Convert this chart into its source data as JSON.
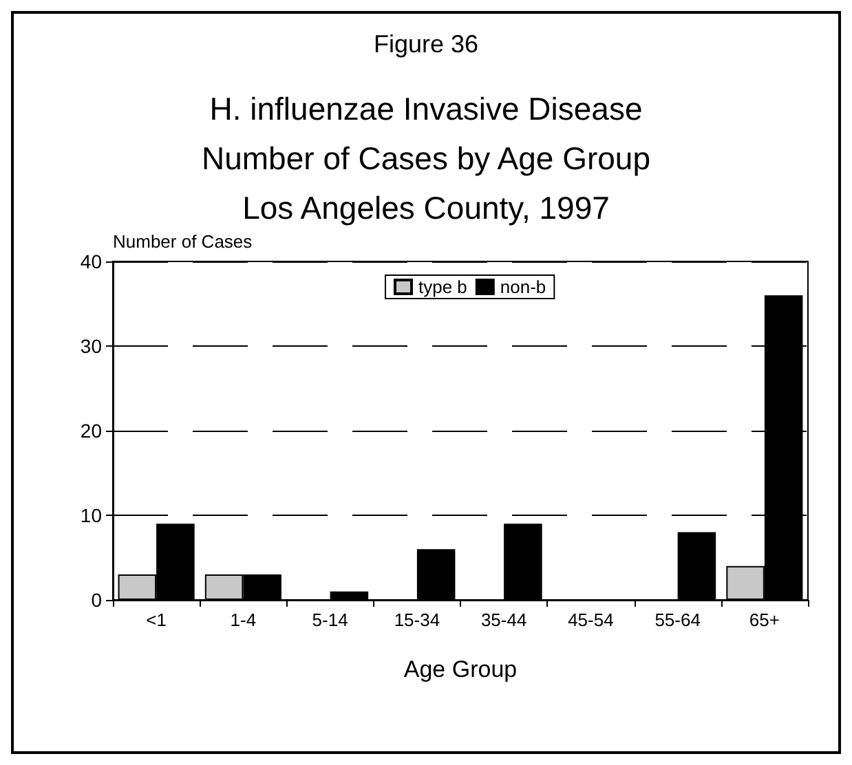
{
  "chart_data": {
    "type": "bar",
    "title": "Figure 36",
    "subtitle": "H. influenzae Invasive Disease\nNumber of Cases by Age Group\nLos Angeles County, 1997",
    "xlabel": "Age Group",
    "ylabel": "Number of Cases",
    "categories": [
      "<1",
      "1-4",
      "5-14",
      "15-34",
      "35-44",
      "45-54",
      "55-64",
      "65+"
    ],
    "series": [
      {
        "name": "type b",
        "color": "#c8c8c8",
        "values": [
          3,
          3,
          0,
          0,
          0,
          0,
          0,
          4
        ]
      },
      {
        "name": "non-b",
        "color": "#000000",
        "values": [
          9,
          3,
          1,
          6,
          9,
          0,
          8,
          36
        ]
      }
    ],
    "ylim": [
      0,
      40
    ],
    "yticks": [
      0,
      10,
      20,
      30,
      40
    ],
    "grid": "y",
    "legend": "top"
  }
}
